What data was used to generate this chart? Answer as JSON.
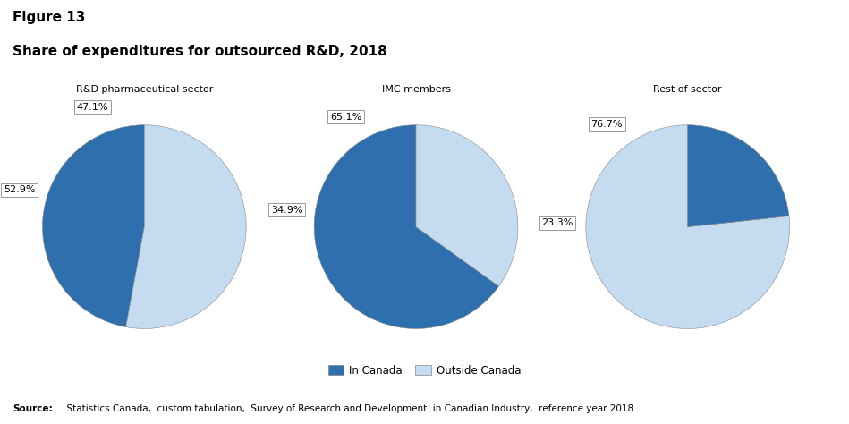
{
  "title_line1": "Figure 13",
  "title_line2": "Share of expenditures for outsourced R&D, 2018",
  "pie_titles": [
    "R&D pharmaceutical sector",
    "IMC members",
    "Rest of sector"
  ],
  "pie_data": [
    [
      47.1,
      52.9
    ],
    [
      65.1,
      34.9
    ],
    [
      23.3,
      76.7
    ]
  ],
  "pie_labels": [
    [
      "47.1%",
      "52.9%"
    ],
    [
      "65.1%",
      "34.9%"
    ],
    [
      "23.3%",
      "76.7%"
    ]
  ],
  "colors_order": [
    "#2F6FAD",
    "#C5DCF0"
  ],
  "legend_labels": [
    "In Canada",
    "Outside Canada"
  ],
  "source_bold": "Source:",
  "source_rest": "  Statistics Canada,  custom tabulation,  Survey of Research and Development  in Canadian Industry,  reference year 2018",
  "background_color": "#ffffff",
  "title_fontsize": 11,
  "subtitle_fontsize": 11,
  "pie_title_fontsize": 8,
  "label_fontsize": 8,
  "legend_fontsize": 8.5,
  "source_fontsize": 7.5
}
